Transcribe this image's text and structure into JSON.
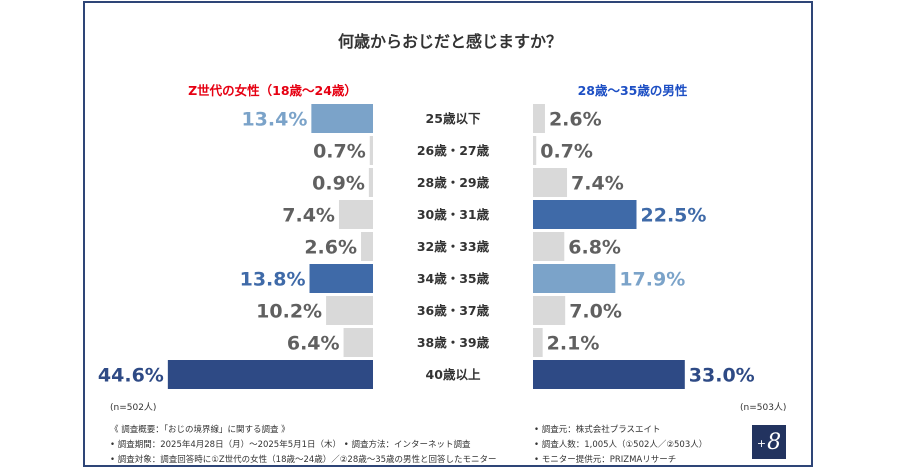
{
  "title": "何歳からおじだと感じますか？",
  "n_left": "(n=502人)",
  "n_right": "(n=503人)",
  "notes_left": [
    "《 調査概要：「おじの境界線」に関する調査 》",
    "• 調査期間：2025年4月28日（月）～2025年5月1日（木） • 調査方法：インターネット調査",
    "• 調査対象：調査回答時に①Z世代の女性（18歳～24歳）／②28歳～35歳の男性と回答したモニター"
  ],
  "notes_right": [
    "• 調査元：株式会社プラスエイト",
    "• 調査人数：1,005人（①502人／②503人）",
    "• モニター提供元：PRIZMAリサーチ"
  ],
  "logo": {
    "plus": "+",
    "eight": "8"
  },
  "colors": {
    "left_title": "#e60012",
    "right_title": "#1d4fc4",
    "gray": "#d9d9d9",
    "light_blue": "#7ba3c9",
    "mid_blue": "#3f6aa8",
    "dark_blue": "#2e4a85",
    "label_gray": "#606060"
  },
  "chart_data": {
    "type": "bar",
    "orientation": "horizontal-butterfly",
    "categories": [
      "25歳以下",
      "26歳・27歳",
      "28歳・29歳",
      "30歳・31歳",
      "32歳・33歳",
      "34歳・35歳",
      "36歳・37歳",
      "38歳・39歳",
      "40歳以上"
    ],
    "series": [
      {
        "name": "Z世代の女性（18歳～24歳）",
        "values": [
          13.4,
          0.7,
          0.9,
          7.4,
          2.6,
          13.8,
          10.2,
          6.4,
          44.6
        ],
        "labels": [
          "13.4%",
          "0.7%",
          "0.9%",
          "7.4%",
          "2.6%",
          "13.8%",
          "10.2%",
          "6.4%",
          "44.6%"
        ],
        "highlight": [
          "light",
          "none",
          "none",
          "none",
          "none",
          "mid",
          "none",
          "none",
          "dark"
        ]
      },
      {
        "name": "28歳～35歳の男性",
        "values": [
          2.6,
          0.7,
          7.4,
          22.5,
          6.8,
          17.9,
          7.0,
          2.1,
          33.0
        ],
        "labels": [
          "2.6%",
          "0.7%",
          "7.4%",
          "22.5%",
          "6.8%",
          "17.9%",
          "7.0%",
          "2.1%",
          "33.0%"
        ],
        "highlight": [
          "none",
          "none",
          "none",
          "mid",
          "none",
          "light",
          "none",
          "none",
          "dark"
        ]
      }
    ],
    "units": "%"
  }
}
